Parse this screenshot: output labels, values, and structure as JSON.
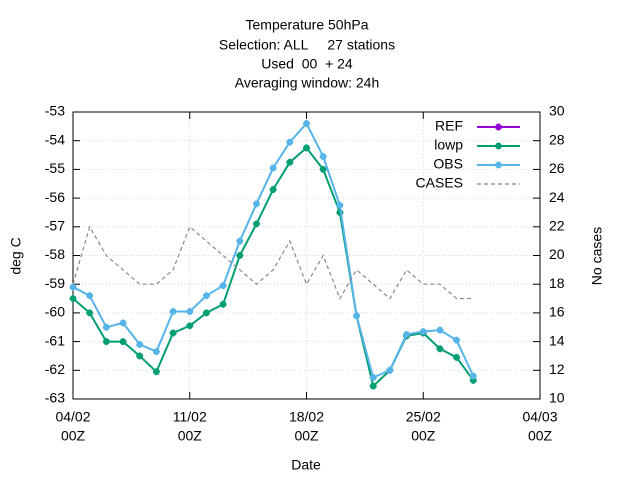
{
  "chart_data": {
    "type": "line",
    "title": [
      "Temperature 50hPa",
      "Selection: ALL     27 stations",
      "Used  00  + 24",
      "Averaging window: 24h"
    ],
    "xlabel": "Date",
    "ylabel": "deg C",
    "y2label": "No cases",
    "x": [
      "04/02",
      "05/02",
      "06/02",
      "07/02",
      "08/02",
      "09/02",
      "10/02",
      "11/02",
      "12/02",
      "13/02",
      "14/02",
      "15/02",
      "16/02",
      "17/02",
      "18/02",
      "19/02",
      "20/02",
      "21/02",
      "22/02",
      "23/02",
      "24/02",
      "25/02",
      "26/02",
      "27/02",
      "28/02"
    ],
    "xlim": [
      "04/02",
      "04/03"
    ],
    "xticks": [
      {
        "value": "04/02",
        "label": [
          "04/02",
          "00Z"
        ]
      },
      {
        "value": "11/02",
        "label": [
          "11/02",
          "00Z"
        ]
      },
      {
        "value": "18/02",
        "label": [
          "18/02",
          "00Z"
        ]
      },
      {
        "value": "25/02",
        "label": [
          "25/02",
          "00Z"
        ]
      },
      {
        "value": "04/03",
        "label": [
          "04/03",
          "00Z"
        ]
      }
    ],
    "ylim": [
      -63,
      -53
    ],
    "yticks": [
      -63,
      -62,
      -61,
      -60,
      -59,
      -58,
      -57,
      -56,
      -55,
      -54,
      -53
    ],
    "y2lim": [
      10,
      30
    ],
    "y2ticks": [
      10,
      12,
      14,
      16,
      18,
      20,
      22,
      24,
      26,
      28,
      30
    ],
    "grid": true,
    "legend": "top-right",
    "series": [
      {
        "name": "REF",
        "color": "#9400d3",
        "marker": true,
        "values": [
          null,
          null,
          null,
          null,
          null,
          null,
          null,
          null,
          null,
          null,
          null,
          null,
          null,
          null,
          null,
          null,
          null,
          null,
          null,
          null,
          null,
          null,
          null,
          null,
          null
        ]
      },
      {
        "name": "lowp",
        "color": "#009e73",
        "marker": true,
        "values": [
          -59.5,
          -60.0,
          -61.0,
          -61.0,
          -61.5,
          -62.05,
          -60.7,
          -60.45,
          -60.0,
          -59.7,
          -58.0,
          -56.9,
          -55.7,
          -54.75,
          -54.25,
          -55.0,
          -56.5,
          -60.1,
          -62.55,
          -62.0,
          -60.8,
          -60.7,
          -61.25,
          -61.55,
          -62.35
        ]
      },
      {
        "name": "OBS",
        "color": "#56b4e9",
        "marker": true,
        "values": [
          -59.1,
          -59.4,
          -60.5,
          -60.35,
          -61.1,
          -61.35,
          -59.95,
          -59.95,
          -59.4,
          -59.05,
          -57.5,
          -56.2,
          -54.95,
          -54.05,
          -53.4,
          -54.55,
          -56.25,
          -60.1,
          -62.25,
          -62.0,
          -60.75,
          -60.65,
          -60.6,
          -60.95,
          -62.2
        ]
      },
      {
        "name": "CASES",
        "color": "#888888",
        "axis": "y2",
        "dashed": true,
        "marker": false,
        "values": [
          18,
          22,
          20,
          19,
          18,
          18,
          19,
          22,
          21,
          20,
          19,
          18,
          19,
          21,
          18,
          20,
          17,
          19,
          18,
          17,
          19,
          18,
          18,
          17,
          17
        ]
      }
    ]
  }
}
